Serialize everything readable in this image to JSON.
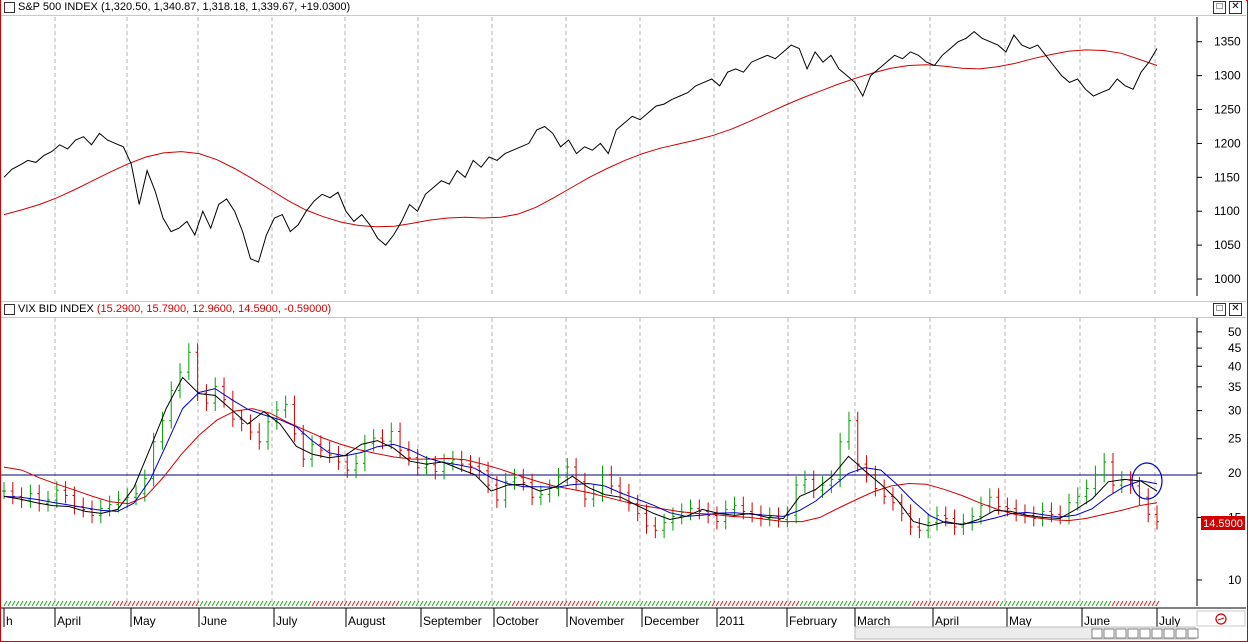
{
  "panels": {
    "top": {
      "title": "S&P 500 INDEX",
      "values": "(1,320.50, 1,340.87, 1,318.18, 1,339.67, +19.0300)"
    },
    "bottom": {
      "title": "VIX BID INDEX",
      "values": "(15.2900, 15.7900, 12.9600, 14.5900, -0.59000)",
      "last_value_badge": "14.5900"
    },
    "window_buttons": {
      "restore": "□",
      "close": "✕"
    }
  },
  "x_axis": {
    "labels": [
      "h",
      "April",
      "May",
      "June",
      "July",
      "August",
      "September",
      "October",
      "November",
      "December",
      "2011",
      "February",
      "March",
      "April",
      "May",
      "June",
      "July"
    ],
    "alarm_icon": "alarm-clock-icon"
  },
  "colors": {
    "price_line": "#000000",
    "moving_average": "#d40000",
    "up_bar": "#00a000",
    "down_bar": "#d40000",
    "blue_ma": "#0000cc",
    "reference_line": "#000080",
    "frame": "#d40000"
  },
  "chart_data": [
    {
      "type": "line",
      "title": "S&P 500 INDEX",
      "x_range": [
        "Mar 2010",
        "Jul 2011"
      ],
      "ylim": [
        975,
        1385
      ],
      "y_ticks": [
        1000,
        1050,
        1100,
        1150,
        1200,
        1250,
        1300,
        1350
      ],
      "series": [
        {
          "name": "",
          "role": "close",
          "values": [
            1150,
            1162,
            1168,
            1175,
            1172,
            1182,
            1188,
            1198,
            1192,
            1205,
            1210,
            1198,
            1215,
            1205,
            1200,
            1195,
            1170,
            1110,
            1160,
            1130,
            1090,
            1070,
            1075,
            1085,
            1065,
            1100,
            1075,
            1110,
            1118,
            1100,
            1070,
            1030,
            1025,
            1065,
            1090,
            1095,
            1070,
            1080,
            1100,
            1115,
            1125,
            1120,
            1128,
            1100,
            1085,
            1095,
            1080,
            1060,
            1050,
            1065,
            1085,
            1110,
            1100,
            1125,
            1135,
            1145,
            1140,
            1160,
            1150,
            1175,
            1165,
            1180,
            1175,
            1185,
            1190,
            1195,
            1200,
            1220,
            1225,
            1215,
            1195,
            1205,
            1185,
            1195,
            1190,
            1200,
            1185,
            1220,
            1230,
            1240,
            1235,
            1245,
            1255,
            1258,
            1265,
            1270,
            1275,
            1285,
            1290,
            1295,
            1285,
            1305,
            1310,
            1305,
            1320,
            1325,
            1330,
            1325,
            1335,
            1345,
            1340,
            1310,
            1335,
            1320,
            1330,
            1310,
            1300,
            1290,
            1270,
            1300,
            1310,
            1320,
            1330,
            1325,
            1335,
            1330,
            1320,
            1315,
            1330,
            1340,
            1350,
            1355,
            1365,
            1355,
            1350,
            1345,
            1335,
            1360,
            1345,
            1340,
            1345,
            1330,
            1315,
            1300,
            1290,
            1295,
            1280,
            1270,
            1275,
            1280,
            1295,
            1285,
            1280,
            1305,
            1320,
            1340
          ]
        },
        {
          "name": "",
          "role": "moving-average",
          "values": [
            1095,
            1102,
            1110,
            1120,
            1132,
            1145,
            1158,
            1170,
            1180,
            1186,
            1188,
            1185,
            1176,
            1163,
            1148,
            1132,
            1116,
            1102,
            1092,
            1084,
            1079,
            1077,
            1078,
            1082,
            1087,
            1090,
            1091,
            1090,
            1091,
            1096,
            1106,
            1120,
            1135,
            1150,
            1163,
            1175,
            1185,
            1193,
            1199,
            1205,
            1212,
            1221,
            1232,
            1244,
            1256,
            1267,
            1277,
            1287,
            1296,
            1304,
            1311,
            1315,
            1316,
            1314,
            1311,
            1310,
            1313,
            1318,
            1325,
            1331,
            1336,
            1338,
            1337,
            1333,
            1324,
            1315
          ]
        }
      ]
    },
    {
      "type": "ohlc",
      "title": "VIX BID INDEX",
      "ylim": [
        8.5,
        54
      ],
      "scale": "log",
      "y_ticks": [
        10,
        15,
        20,
        25,
        30,
        35,
        40,
        45,
        50
      ],
      "reference_line": 20,
      "last": 14.59,
      "series": [
        {
          "name": "",
          "role": "close",
          "values": [
            17.8,
            17.2,
            16.8,
            17.5,
            16.4,
            16.8,
            17.9,
            17.3,
            16.1,
            15.8,
            15.2,
            15.9,
            16.3,
            16.8,
            17.1,
            17.5,
            19.3,
            24.5,
            28.1,
            34.2,
            38.5,
            43.8,
            33.6,
            31.5,
            35.1,
            32.2,
            28.4,
            27.6,
            26.1,
            24.5,
            27.9,
            30.1,
            31.2,
            25.8,
            21.9,
            24.1,
            23.2,
            22.5,
            21.5,
            20.4,
            21.3,
            24.2,
            25.1,
            24.6,
            26.2,
            23.2,
            22.1,
            20.7,
            21.1,
            20.2,
            21.4,
            21.8,
            21.2,
            20.9,
            20.3,
            18.5,
            16.8,
            18.9,
            19.4,
            18.8,
            17.1,
            17.4,
            18.1,
            19.5,
            20.8,
            18.9,
            16.9,
            17.5,
            19.8,
            18.4,
            17.6,
            16.4,
            15.4,
            14.2,
            13.8,
            14.5,
            15.1,
            15.5,
            15.9,
            15.6,
            15.2,
            14.6,
            15.8,
            16.2,
            15.6,
            15.3,
            14.9,
            15.1,
            14.8,
            15.2,
            18.5,
            19.2,
            17.9,
            18.5,
            19.2,
            24.5,
            28.1,
            21.2,
            19.8,
            18.1,
            17.2,
            16.5,
            15.4,
            14.1,
            13.8,
            14.5,
            15.2,
            14.9,
            14.1,
            14.5,
            15.1,
            16.2,
            17.1,
            16.1,
            15.9,
            15.4,
            15.2,
            14.9,
            15.6,
            15.3,
            15.1,
            16.5,
            17.2,
            18.1,
            19.8,
            21.5,
            18.5,
            19.1,
            18.4,
            17.1,
            15.3,
            14.59
          ]
        },
        {
          "name": "",
          "role": "short-ma",
          "values": [
            17.2,
            16.9,
            16.5,
            16.2,
            16.1,
            15.6,
            15.4,
            15.8,
            18.2,
            23.5,
            30.5,
            37.2,
            33.5,
            33.1,
            30.2,
            27.5,
            29.8,
            27.5,
            23.8,
            22.6,
            22.1,
            22.4,
            24.1,
            24.7,
            23.5,
            21.6,
            21.2,
            21.5,
            20.6,
            19.8,
            17.8,
            18.5,
            18.6,
            17.8,
            18.3,
            19.6,
            18.2,
            17.4,
            17.1,
            16.2,
            15.4,
            14.8,
            15.1,
            15.8,
            15.4,
            15.2,
            15.4,
            15.0,
            14.9,
            17.2,
            18.0,
            19.6,
            22.3,
            20.3,
            18.6,
            16.8,
            14.6,
            14.2,
            14.6,
            14.3,
            14.8,
            15.7,
            15.6,
            15.2,
            15.0,
            14.9,
            15.8,
            16.9,
            18.9,
            19.2,
            19.0,
            17.8
          ]
        },
        {
          "name": "",
          "role": "long-ma",
          "values": [
            20.8,
            20.4,
            19.4,
            18.6,
            17.9,
            17.2,
            16.6,
            16.4,
            17.2,
            19.5,
            22.6,
            25.6,
            28.2,
            29.9,
            30.4,
            29.5,
            27.8,
            26.4,
            25.1,
            24.1,
            23.3,
            22.7,
            22.2,
            21.9,
            21.9,
            22.0,
            21.8,
            21.2,
            20.5,
            19.7,
            19.0,
            18.4,
            18.0,
            17.6,
            17.1,
            16.6,
            16.2,
            15.9,
            15.6,
            15.4,
            15.3,
            15.1,
            15.0,
            14.8,
            14.6,
            14.6,
            15.0,
            15.9,
            16.8,
            17.7,
            18.4,
            18.7,
            18.6,
            18.0,
            17.3,
            16.5,
            15.8,
            15.3,
            15.0,
            14.8,
            14.7,
            14.9,
            15.3,
            15.7,
            16.2,
            16.5
          ]
        }
      ]
    }
  ]
}
